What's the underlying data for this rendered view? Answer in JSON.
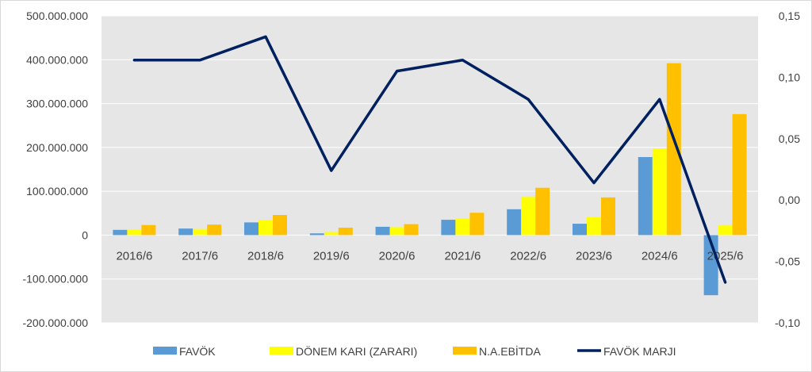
{
  "chart_data": {
    "type": "bar",
    "title": "",
    "categories": [
      "2016/6",
      "2017/6",
      "2018/6",
      "2019/6",
      "2020/6",
      "2021/6",
      "2022/6",
      "2023/6",
      "2024/6",
      "2025/6"
    ],
    "y_left": {
      "min": -200000000,
      "max": 500000000,
      "ticks": [
        {
          "value": 500000000,
          "label": "500.000.000"
        },
        {
          "value": 400000000,
          "label": "400.000.000"
        },
        {
          "value": 300000000,
          "label": "300.000.000"
        },
        {
          "value": 200000000,
          "label": "200.000.000"
        },
        {
          "value": 100000000,
          "label": "100.000.000"
        },
        {
          "value": 0,
          "label": "0"
        },
        {
          "value": -100000000,
          "label": "-100.000.000"
        },
        {
          "value": -200000000,
          "label": "-200.000.000"
        }
      ]
    },
    "y_right": {
      "min": -0.1,
      "max": 0.15,
      "ticks": [
        {
          "value": 0.15,
          "label": "0,15"
        },
        {
          "value": 0.1,
          "label": "0,10"
        },
        {
          "value": 0.05,
          "label": "0,05"
        },
        {
          "value": 0.0,
          "label": "0,00"
        },
        {
          "value": -0.05,
          "label": "-0,05"
        },
        {
          "value": -0.1,
          "label": "-0,10"
        }
      ]
    },
    "grid": true,
    "legend_position": "bottom",
    "series": [
      {
        "name": "FAVÖK",
        "kind": "bar",
        "axis": "left",
        "color": "#5b9bd5",
        "values": [
          12000000,
          15000000,
          29000000,
          4000000,
          19000000,
          35000000,
          59000000,
          26000000,
          178000000,
          -137000000
        ]
      },
      {
        "name": "DÖNEM KARI (ZARARI)",
        "kind": "bar",
        "axis": "left",
        "color": "#ffff00",
        "values": [
          13000000,
          14000000,
          35000000,
          7000000,
          18000000,
          38000000,
          87000000,
          41000000,
          197000000,
          22000000
        ]
      },
      {
        "name": "N.A.EBİTDA",
        "kind": "bar",
        "axis": "left",
        "color": "#ffc000",
        "values": [
          23000000,
          24000000,
          46000000,
          17000000,
          25000000,
          51000000,
          108000000,
          86000000,
          392000000,
          276000000
        ]
      },
      {
        "name": "FAVÖK MARJI",
        "kind": "line",
        "axis": "right",
        "color": "#002060",
        "values": [
          0.114,
          0.114,
          0.133,
          0.024,
          0.105,
          0.114,
          0.082,
          0.014,
          0.082,
          -0.067
        ]
      }
    ]
  }
}
